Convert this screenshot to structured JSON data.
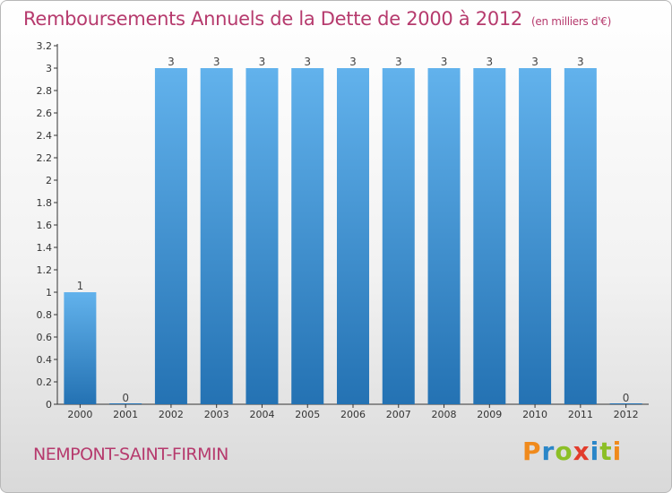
{
  "header": {
    "title": "Remboursements Annuels de la Dette de 2000 à 2012",
    "unit": "(en milliers d'€)"
  },
  "footer": {
    "commune": "NEMPONT-SAINT-FIRMIN",
    "logo": "Proxiti"
  },
  "colors": {
    "title": "#b63a6d",
    "bar_top": "#62b2ec",
    "bar_bottom": "#2472b3",
    "logo_letters": [
      "#f08a1c",
      "#2a86c8",
      "#8cbf26",
      "#e23c2c",
      "#2a86c8",
      "#8cbf26",
      "#f08a1c"
    ]
  },
  "chart_data": {
    "type": "bar",
    "title": "Remboursements Annuels de la Dette de 2000 à 2012",
    "subtitle": "(en milliers d'€)",
    "categories": [
      "2000",
      "2001",
      "2002",
      "2003",
      "2004",
      "2005",
      "2006",
      "2007",
      "2008",
      "2009",
      "2010",
      "2011",
      "2012"
    ],
    "values": [
      1,
      0,
      3,
      3,
      3,
      3,
      3,
      3,
      3,
      3,
      3,
      3,
      0
    ],
    "data_labels": [
      "1",
      "0",
      "3",
      "3",
      "3",
      "3",
      "3",
      "3",
      "3",
      "3",
      "3",
      "3",
      "0"
    ],
    "ylim": [
      0,
      3.2
    ],
    "yticks": [
      0,
      0.2,
      0.4,
      0.6,
      0.8,
      1,
      1.2,
      1.4,
      1.6,
      1.8,
      2,
      2.2,
      2.4,
      2.6,
      2.8,
      3,
      3.2
    ],
    "ytick_labels": [
      "0",
      "0.2",
      "0.4",
      "0.6",
      "0.8",
      "1",
      "1.2",
      "1.4",
      "1.6",
      "1.8",
      "2",
      "2.2",
      "2.4",
      "2.6",
      "2.8",
      "3",
      "3.2"
    ],
    "grid": false,
    "legend": "none"
  }
}
